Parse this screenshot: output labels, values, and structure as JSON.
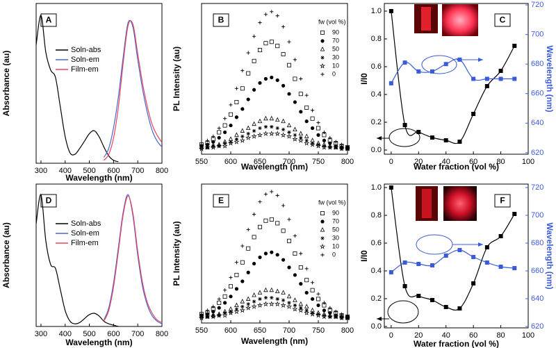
{
  "chart_data": [
    {
      "type": "line",
      "panel_label": "A",
      "xlabel": "Wavelength (nm)",
      "ylabel": "Absorbance (au)",
      "smooth": true,
      "legend": "upper left",
      "x": [
        280,
        300,
        320,
        340,
        360,
        380,
        400,
        420,
        440,
        460,
        480,
        500,
        520,
        540,
        560,
        580,
        600,
        620,
        640,
        660,
        680,
        700,
        720,
        740,
        760,
        780,
        800
      ],
      "xlim": [
        280,
        800
      ],
      "xticks": [
        300,
        400,
        500,
        600,
        700,
        800
      ],
      "ylim": [
        0,
        1.08
      ],
      "series": [
        {
          "name": "Soln-abs",
          "color": "#000000",
          "values": [
            0.8,
            1.0,
            0.75,
            0.63,
            0.58,
            0.38,
            0.18,
            0.07,
            0.06,
            0.1,
            0.15,
            0.2,
            0.22,
            0.18,
            0.11,
            0.05,
            0.02,
            0.01,
            null,
            null,
            null,
            null,
            null,
            null,
            null,
            null,
            null
          ]
        },
        {
          "name": "Soln-em",
          "color": "#4a63d8",
          "values": [
            null,
            null,
            null,
            null,
            null,
            null,
            null,
            null,
            null,
            null,
            null,
            null,
            null,
            null,
            0.04,
            0.1,
            0.24,
            0.45,
            0.72,
            0.95,
            0.92,
            0.7,
            0.5,
            0.34,
            0.22,
            0.15,
            0.11
          ]
        },
        {
          "name": "Film-em",
          "color": "#e8455a",
          "values": [
            null,
            null,
            null,
            null,
            null,
            null,
            null,
            null,
            null,
            null,
            null,
            null,
            null,
            null,
            0.02,
            0.06,
            0.17,
            0.38,
            0.68,
            0.93,
            0.94,
            0.74,
            0.54,
            0.38,
            0.26,
            0.19,
            0.14
          ]
        }
      ]
    },
    {
      "type": "scatter",
      "panel_label": "B",
      "xlabel": "Wavelength (nm)",
      "ylabel": "PL Intensity (au)",
      "legend_title": "fw (vol %)",
      "legend": "upper right",
      "x": [
        550,
        560,
        570,
        580,
        590,
        600,
        610,
        620,
        630,
        640,
        650,
        660,
        670,
        680,
        690,
        700,
        710,
        720,
        730,
        740,
        750,
        760,
        770,
        780,
        790,
        800
      ],
      "xlim": [
        550,
        800
      ],
      "xticks": [
        550,
        600,
        650,
        700,
        750,
        800
      ],
      "ylim": [
        0,
        1.1
      ],
      "series": [
        {
          "name": "90",
          "marker": "square-open",
          "color": "#000000",
          "values": [
            0.07,
            0.08,
            0.11,
            0.16,
            0.21,
            0.29,
            0.38,
            0.48,
            0.59,
            0.68,
            0.76,
            0.81,
            0.82,
            0.79,
            0.73,
            0.65,
            0.55,
            0.44,
            0.34,
            0.26,
            0.19,
            0.14,
            0.1,
            0.08,
            0.06,
            0.05
          ]
        },
        {
          "name": "70",
          "marker": "circle",
          "color": "#000000",
          "values": [
            0.06,
            0.07,
            0.09,
            0.12,
            0.16,
            0.21,
            0.27,
            0.33,
            0.4,
            0.47,
            0.52,
            0.55,
            0.56,
            0.54,
            0.5,
            0.44,
            0.38,
            0.31,
            0.24,
            0.19,
            0.14,
            0.1,
            0.08,
            0.06,
            0.05,
            0.05
          ]
        },
        {
          "name": "50",
          "marker": "triangle-open",
          "color": "#000000",
          "values": [
            0.05,
            0.05,
            0.06,
            0.07,
            0.09,
            0.11,
            0.14,
            0.17,
            0.19,
            0.22,
            0.24,
            0.26,
            0.26,
            0.25,
            0.24,
            0.21,
            0.18,
            0.15,
            0.13,
            0.1,
            0.08,
            0.07,
            0.06,
            0.05,
            0.05,
            0.04
          ]
        },
        {
          "name": "30",
          "marker": "asterisk",
          "color": "#000000",
          "values": [
            0.05,
            0.05,
            0.06,
            0.06,
            0.08,
            0.09,
            0.11,
            0.13,
            0.15,
            0.17,
            0.19,
            0.2,
            0.2,
            0.19,
            0.18,
            0.16,
            0.14,
            0.12,
            0.1,
            0.08,
            0.07,
            0.06,
            0.05,
            0.05,
            0.04,
            0.04
          ]
        },
        {
          "name": "10",
          "marker": "star-open",
          "color": "#000000",
          "values": [
            0.04,
            0.05,
            0.05,
            0.06,
            0.06,
            0.08,
            0.09,
            0.1,
            0.12,
            0.13,
            0.14,
            0.15,
            0.15,
            0.15,
            0.14,
            0.13,
            0.11,
            0.1,
            0.08,
            0.07,
            0.06,
            0.05,
            0.05,
            0.05,
            0.04,
            0.04
          ]
        },
        {
          "name": "0",
          "marker": "plus",
          "color": "#000000",
          "values": [
            0.07,
            0.1,
            0.13,
            0.19,
            0.26,
            0.36,
            0.48,
            0.61,
            0.74,
            0.86,
            0.96,
            1.02,
            1.04,
            1.01,
            0.93,
            0.82,
            0.69,
            0.55,
            0.43,
            0.32,
            0.23,
            0.16,
            0.12,
            0.09,
            0.07,
            0.05
          ]
        }
      ]
    },
    {
      "type": "line",
      "panel_label": "C",
      "xlabel": "Water fraction (vol %)",
      "ylabel": "I/I0",
      "y2label": "Wavelength (nm)",
      "y2color": "#3b5bdb",
      "smooth": true,
      "x": [
        0,
        10,
        20,
        30,
        40,
        50,
        60,
        70,
        80,
        90
      ],
      "xlim": [
        -5,
        100
      ],
      "xticks": [
        0,
        20,
        40,
        60,
        80,
        100
      ],
      "ylim": [
        -0.03,
        1.055
      ],
      "yticks": [
        {
          "value": 0,
          "label": "0.0"
        },
        0.2,
        0.4,
        0.6,
        0.8,
        {
          "value": 1,
          "label": "1.0"
        }
      ],
      "y2lim": [
        619,
        721
      ],
      "y2ticks": [
        620,
        640,
        660,
        680,
        700,
        720
      ],
      "series": [
        {
          "marker": "square",
          "color": "#000000",
          "values": [
            1.0,
            0.18,
            0.13,
            0.09,
            0.07,
            0.06,
            0.26,
            0.46,
            0.57,
            0.75
          ]
        },
        {
          "marker": "square",
          "color": "#3b5bdb",
          "axis": "y2",
          "values": [
            667,
            681,
            675,
            675,
            680,
            683,
            670,
            670,
            670,
            670
          ]
        }
      ]
    },
    {
      "type": "line",
      "panel_label": "D",
      "xlabel": "Wavelength (nm)",
      "ylabel": "Absorbance (au)",
      "smooth": true,
      "legend": "upper left",
      "x": [
        280,
        300,
        320,
        340,
        360,
        380,
        400,
        420,
        440,
        460,
        480,
        500,
        520,
        540,
        560,
        580,
        600,
        620,
        640,
        660,
        680,
        700,
        720,
        740,
        760,
        780,
        800
      ],
      "xlim": [
        280,
        800
      ],
      "xticks": [
        300,
        400,
        500,
        600,
        700,
        800
      ],
      "ylim": [
        0,
        1.08
      ],
      "series": [
        {
          "name": "Soln-abs",
          "color": "#000000",
          "values": [
            0.78,
            1.0,
            0.65,
            0.47,
            0.44,
            0.28,
            0.12,
            0.04,
            0.02,
            0.03,
            0.06,
            0.09,
            0.1,
            0.08,
            0.04,
            0.02,
            0.01,
            0.0,
            null,
            null,
            null,
            null,
            null,
            null,
            null,
            null,
            null
          ]
        },
        {
          "name": "Soln-em",
          "color": "#4a63d8",
          "values": [
            null,
            null,
            null,
            null,
            null,
            null,
            null,
            null,
            null,
            null,
            null,
            null,
            null,
            null,
            0.05,
            0.14,
            0.33,
            0.6,
            0.87,
            1.0,
            0.84,
            0.54,
            0.3,
            0.16,
            0.08,
            0.04,
            0.02
          ]
        },
        {
          "name": "Film-em",
          "color": "#e8455a",
          "values": [
            null,
            null,
            null,
            null,
            null,
            null,
            null,
            null,
            null,
            null,
            null,
            null,
            null,
            null,
            0.04,
            0.12,
            0.3,
            0.57,
            0.85,
            0.99,
            0.86,
            0.57,
            0.33,
            0.18,
            0.1,
            0.05,
            0.03
          ]
        }
      ]
    },
    {
      "type": "scatter",
      "panel_label": "E",
      "xlabel": "Wavelength (nm)",
      "ylabel": "PL Intensity (au)",
      "legend_title": "fw (vol %)",
      "legend": "upper right",
      "x": [
        550,
        560,
        570,
        580,
        590,
        600,
        610,
        620,
        630,
        640,
        650,
        660,
        670,
        680,
        690,
        700,
        710,
        720,
        730,
        740,
        750,
        760,
        770,
        780,
        790,
        800
      ],
      "xlim": [
        550,
        800
      ],
      "xticks": [
        550,
        600,
        650,
        700,
        750,
        800
      ],
      "ylim": [
        0,
        1.1
      ],
      "series": [
        {
          "name": "90",
          "marker": "square-open",
          "color": "#000000",
          "values": [
            0.07,
            0.08,
            0.11,
            0.16,
            0.21,
            0.29,
            0.38,
            0.48,
            0.59,
            0.68,
            0.76,
            0.81,
            0.82,
            0.79,
            0.73,
            0.65,
            0.55,
            0.44,
            0.34,
            0.26,
            0.19,
            0.14,
            0.1,
            0.08,
            0.06,
            0.05
          ]
        },
        {
          "name": "70",
          "marker": "circle",
          "color": "#000000",
          "values": [
            0.06,
            0.07,
            0.09,
            0.12,
            0.16,
            0.21,
            0.27,
            0.33,
            0.4,
            0.47,
            0.52,
            0.55,
            0.56,
            0.54,
            0.5,
            0.44,
            0.38,
            0.31,
            0.24,
            0.19,
            0.14,
            0.1,
            0.08,
            0.06,
            0.05,
            0.05
          ]
        },
        {
          "name": "50",
          "marker": "triangle-open",
          "color": "#000000",
          "values": [
            0.05,
            0.05,
            0.06,
            0.07,
            0.09,
            0.11,
            0.14,
            0.17,
            0.19,
            0.22,
            0.24,
            0.26,
            0.26,
            0.25,
            0.24,
            0.21,
            0.18,
            0.15,
            0.13,
            0.1,
            0.08,
            0.07,
            0.06,
            0.05,
            0.05,
            0.04
          ]
        },
        {
          "name": "30",
          "marker": "asterisk",
          "color": "#000000",
          "values": [
            0.05,
            0.05,
            0.06,
            0.06,
            0.08,
            0.09,
            0.11,
            0.13,
            0.15,
            0.17,
            0.19,
            0.2,
            0.2,
            0.19,
            0.18,
            0.16,
            0.14,
            0.12,
            0.1,
            0.08,
            0.07,
            0.06,
            0.05,
            0.05,
            0.04,
            0.04
          ]
        },
        {
          "name": "10",
          "marker": "star-open",
          "color": "#000000",
          "values": [
            0.04,
            0.05,
            0.05,
            0.06,
            0.06,
            0.08,
            0.09,
            0.1,
            0.12,
            0.13,
            0.14,
            0.15,
            0.15,
            0.15,
            0.14,
            0.13,
            0.11,
            0.1,
            0.08,
            0.07,
            0.06,
            0.05,
            0.05,
            0.05,
            0.04,
            0.04
          ]
        },
        {
          "name": "0",
          "marker": "plus",
          "color": "#000000",
          "values": [
            0.07,
            0.1,
            0.13,
            0.19,
            0.26,
            0.36,
            0.48,
            0.61,
            0.74,
            0.86,
            0.96,
            1.02,
            1.04,
            1.01,
            0.93,
            0.82,
            0.69,
            0.55,
            0.43,
            0.32,
            0.23,
            0.16,
            0.12,
            0.09,
            0.07,
            0.05
          ]
        }
      ]
    },
    {
      "type": "line",
      "panel_label": "F",
      "xlabel": "Water fraction (vol %)",
      "ylabel": "I/I0",
      "y2label": "Wavelength (nm)",
      "y2color": "#3b5bdb",
      "smooth": true,
      "x": [
        0,
        10,
        20,
        30,
        40,
        50,
        60,
        70,
        80,
        90
      ],
      "xlim": [
        -5,
        100
      ],
      "xticks": [
        0,
        20,
        40,
        60,
        80,
        100
      ],
      "ylim": [
        -0.01,
        1.025
      ],
      "yticks": [
        {
          "value": 0,
          "label": "0.0"
        },
        0.2,
        0.4,
        0.6,
        0.8,
        {
          "value": 1,
          "label": "1.0"
        }
      ],
      "y2lim": [
        619,
        722.5
      ],
      "y2ticks": [
        620,
        640,
        660,
        680,
        700,
        720
      ],
      "series": [
        {
          "marker": "square",
          "color": "#000000",
          "values": [
            1.0,
            0.29,
            0.22,
            0.19,
            0.14,
            0.13,
            0.31,
            0.57,
            0.65,
            0.81
          ]
        },
        {
          "marker": "square",
          "color": "#3b5bdb",
          "axis": "y2",
          "values": [
            659,
            666,
            665,
            664,
            671,
            675,
            670,
            666,
            663,
            662
          ]
        }
      ]
    }
  ]
}
